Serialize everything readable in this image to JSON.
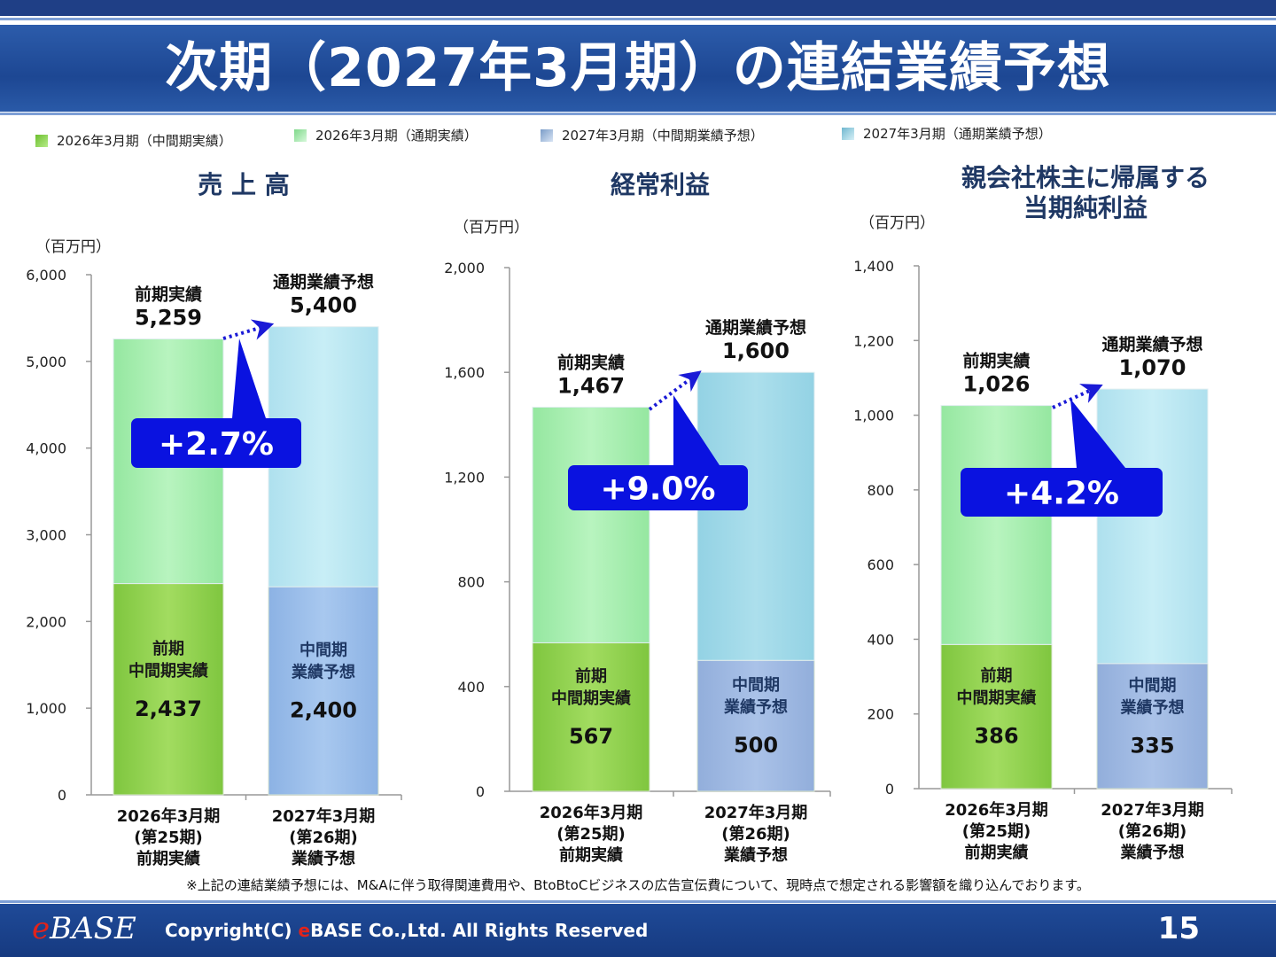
{
  "slide": {
    "title": "次期（2027年3月期）の連結業績予想",
    "footnote": "※上記の連結業績予想には、M&Aに伴う取得関連費用や、BtoBtoCビジネスの広告宣伝費について、現時点で想定される影響額を織り込んでおります。",
    "logo": {
      "e": "e",
      "rest": "BASE"
    },
    "copyright": {
      "prefix": "Copyright(C) ",
      "e": "e",
      "suffix": "BASE Co.,Ltd. All Rights Reserved"
    },
    "page_number": "15"
  },
  "legend": [
    {
      "label": "2026年3月期（中間期実績）",
      "color": "#8fd14f"
    },
    {
      "label": "2026年3月期（通期実績）",
      "color": "#a6ecae"
    },
    {
      "label": "2027年3月期（中間期業績予想）",
      "color": "#9cb8e0"
    },
    {
      "label": "2027年3月期（通期業績予想）",
      "color": "#a8d8ea"
    }
  ],
  "colors": {
    "prev_interim": "#92d050",
    "prev_full": "#a9f0b0",
    "next_interim": "#a4c2e8",
    "next_full": "#bfe9f3",
    "badge": "#0a12e0",
    "arrow": "#1a1ad6",
    "title_text": "#1f3864"
  },
  "chart_data": [
    {
      "type": "bar",
      "title": "売 上 高",
      "unit": "（百万円）",
      "ylim": [
        0,
        6000
      ],
      "yticks": [
        "0",
        "1,000",
        "2,000",
        "3,000",
        "4,000",
        "5,000",
        "6,000"
      ],
      "ytick_values": [
        0,
        1000,
        2000,
        3000,
        4000,
        5000,
        6000
      ],
      "categories": [
        [
          "2026年3月期",
          "(第25期)",
          "前期実績"
        ],
        [
          "2027年3月期",
          "(第26期)",
          "業績予想"
        ]
      ],
      "series": [
        {
          "name": "中間期",
          "values": [
            2437,
            2400
          ]
        },
        {
          "name": "通期",
          "values": [
            5259,
            5400
          ]
        }
      ],
      "interim_labels": [
        {
          "lines": [
            "前期",
            "中間期実績"
          ],
          "value": "2,437"
        },
        {
          "lines": [
            "中間期",
            "業績予想"
          ],
          "value": "2,400"
        }
      ],
      "full_labels": [
        {
          "caption": "前期実績",
          "value": "5,259"
        },
        {
          "caption": "通期業績予想",
          "value": "5,400"
        }
      ],
      "growth": "+2.7%"
    },
    {
      "type": "bar",
      "title": "経常利益",
      "unit": "（百万円）",
      "ylim": [
        0,
        2000
      ],
      "yticks": [
        "0",
        "400",
        "800",
        "1,200",
        "1,600",
        "2,000"
      ],
      "ytick_values": [
        0,
        400,
        800,
        1200,
        1600,
        2000
      ],
      "categories": [
        [
          "2026年3月期",
          "(第25期)",
          "前期実績"
        ],
        [
          "2027年3月期",
          "(第26期)",
          "業績予想"
        ]
      ],
      "series": [
        {
          "name": "中間期",
          "values": [
            567,
            500
          ]
        },
        {
          "name": "通期",
          "values": [
            1467,
            1600
          ]
        }
      ],
      "interim_labels": [
        {
          "lines": [
            "前期",
            "中間期実績"
          ],
          "value": "567"
        },
        {
          "lines": [
            "中間期",
            "業績予想"
          ],
          "value": "500"
        }
      ],
      "full_labels": [
        {
          "caption": "前期実績",
          "value": "1,467"
        },
        {
          "caption": "通期業績予想",
          "value": "1,600"
        }
      ],
      "growth": "+9.0%"
    },
    {
      "type": "bar",
      "title": "親会社株主に帰属する\n当期純利益",
      "unit": "（百万円）",
      "ylim": [
        0,
        1400
      ],
      "yticks": [
        "0",
        "200",
        "400",
        "600",
        "800",
        "1,000",
        "1,200",
        "1,400"
      ],
      "ytick_values": [
        0,
        200,
        400,
        600,
        800,
        1000,
        1200,
        1400
      ],
      "categories": [
        [
          "2026年3月期",
          "(第25期)",
          "前期実績"
        ],
        [
          "2027年3月期",
          "(第26期)",
          "業績予想"
        ]
      ],
      "series": [
        {
          "name": "中間期",
          "values": [
            386,
            335
          ]
        },
        {
          "name": "通期",
          "values": [
            1026,
            1070
          ]
        }
      ],
      "interim_labels": [
        {
          "lines": [
            "前期",
            "中間期実績"
          ],
          "value": "386"
        },
        {
          "lines": [
            "中間期",
            "業績予想"
          ],
          "value": "335"
        }
      ],
      "full_labels": [
        {
          "caption": "前期実績",
          "value": "1,026"
        },
        {
          "caption": "通期業績予想",
          "value": "1,070"
        }
      ],
      "growth": "+4.2%"
    }
  ]
}
